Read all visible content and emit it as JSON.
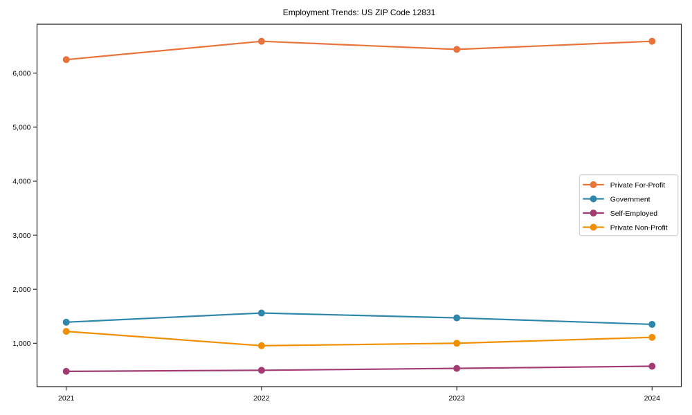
{
  "chart_data": {
    "type": "line",
    "title": "Employment Trends: US ZIP Code 12831",
    "categories": [
      "2021",
      "2022",
      "2023",
      "2024"
    ],
    "series": [
      {
        "name": "Private For-Profit",
        "color": "#E8743B",
        "values": [
          6250,
          6590,
          6440,
          6590
        ]
      },
      {
        "name": "Government",
        "color": "#2E86AB",
        "values": [
          1390,
          1560,
          1470,
          1350
        ]
      },
      {
        "name": "Self-Employed",
        "color": "#A23B72",
        "values": [
          480,
          500,
          535,
          575
        ]
      },
      {
        "name": "Private Non-Profit",
        "color": "#F18F01",
        "values": [
          1220,
          955,
          1000,
          1110
        ]
      }
    ],
    "xlabel": "",
    "ylabel": "",
    "y_ticks": [
      1000,
      2000,
      3000,
      4000,
      5000,
      6000
    ],
    "y_tick_labels": [
      "1,000",
      "2,000",
      "3,000",
      "4,000",
      "5,000",
      "6,000"
    ],
    "ylim": [
      197,
      6906
    ],
    "grid": false,
    "marker": "circle",
    "legend_position": "center-right",
    "axis_color": "#1a1a1a",
    "legend_border_color": "#c9c9c9",
    "legend_background": "#ffffff"
  }
}
